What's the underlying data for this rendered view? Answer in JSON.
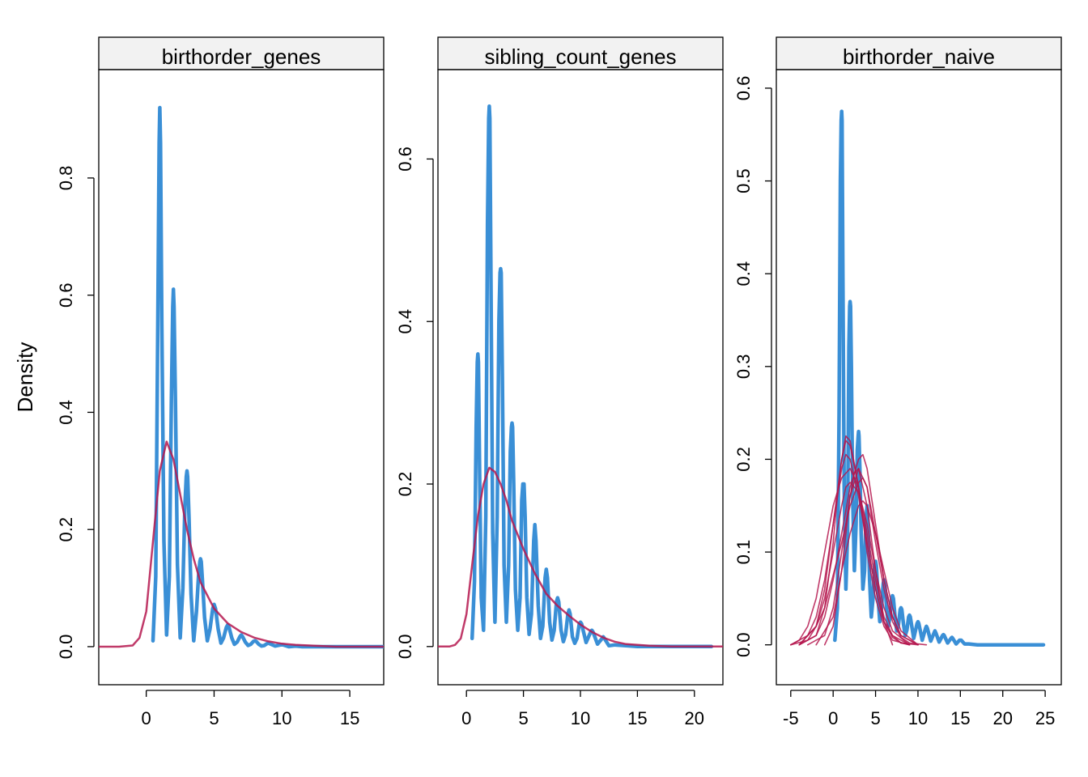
{
  "ylabel": "Density",
  "colors": {
    "observed": "#3a8fd6",
    "simulated": "#b5174f",
    "strip": "#f2f2f2"
  },
  "chart_data": [
    {
      "type": "line",
      "panel": "birthorder_genes",
      "title": "birthorder_genes",
      "ylabel": "Density",
      "xlim": [
        -3.5,
        17.5
      ],
      "ylim": [
        -0.065,
        0.985
      ],
      "xticks": [
        0,
        5,
        10,
        15
      ],
      "xtick_labels": [
        "0",
        "5",
        "10",
        "15"
      ],
      "yticks": [
        0,
        0.2,
        0.4,
        0.6,
        0.8
      ],
      "ytick_labels": [
        "0.0",
        "0.2",
        "0.4",
        "0.6",
        "0.8"
      ],
      "series": [
        {
          "role": "observed",
          "x": [
            0.5,
            0.7,
            0.85,
            0.95,
            1.0,
            1.05,
            1.15,
            1.3,
            1.5,
            1.7,
            1.85,
            1.95,
            2.0,
            2.05,
            2.15,
            2.3,
            2.5,
            2.7,
            2.85,
            2.95,
            3.0,
            3.05,
            3.15,
            3.3,
            3.5,
            3.7,
            3.85,
            3.95,
            4.0,
            4.05,
            4.15,
            4.3,
            4.5,
            4.7,
            4.9,
            5.0,
            5.1,
            5.3,
            5.5,
            5.7,
            5.9,
            6.0,
            6.1,
            6.3,
            6.5,
            6.7,
            6.9,
            7.0,
            7.1,
            7.3,
            7.5,
            7.7,
            7.9,
            8.0,
            8.1,
            8.3,
            8.5,
            8.7,
            8.9,
            9.0,
            9.1,
            9.5,
            9.9,
            10.0,
            10.1,
            10.5,
            11.0,
            11.5,
            12.0,
            13.0,
            14.0,
            15.0,
            16.0,
            17.5
          ],
          "y": [
            0.01,
            0.12,
            0.55,
            0.86,
            0.92,
            0.86,
            0.55,
            0.18,
            0.02,
            0.12,
            0.42,
            0.58,
            0.61,
            0.58,
            0.42,
            0.14,
            0.015,
            0.1,
            0.24,
            0.29,
            0.3,
            0.29,
            0.22,
            0.09,
            0.01,
            0.06,
            0.12,
            0.145,
            0.15,
            0.145,
            0.11,
            0.05,
            0.01,
            0.03,
            0.065,
            0.072,
            0.065,
            0.03,
            0.006,
            0.015,
            0.033,
            0.037,
            0.033,
            0.015,
            0.004,
            0.008,
            0.017,
            0.02,
            0.017,
            0.008,
            0.002,
            0.004,
            0.009,
            0.01,
            0.009,
            0.004,
            0.001,
            0.002,
            0.005,
            0.006,
            0.005,
            0.001,
            0.003,
            0.003,
            0.003,
            0.0,
            0.001,
            0.0,
            0.0,
            0.0,
            0.0,
            0.0,
            0.0,
            0.0
          ]
        },
        {
          "role": "simulated",
          "x": [
            -3.5,
            -2,
            -1,
            -0.5,
            0,
            0.5,
            1,
            1.5,
            2,
            2.5,
            3,
            3.5,
            4,
            5,
            6,
            7,
            8,
            9,
            10,
            11,
            12,
            14,
            17.5
          ],
          "y": [
            0,
            0,
            0.002,
            0.015,
            0.06,
            0.18,
            0.3,
            0.35,
            0.32,
            0.26,
            0.2,
            0.15,
            0.11,
            0.065,
            0.04,
            0.025,
            0.015,
            0.009,
            0.005,
            0.003,
            0.002,
            0,
            0
          ]
        }
      ]
    },
    {
      "type": "line",
      "panel": "sibling_count_genes",
      "title": "sibling_count_genes",
      "ylabel": "",
      "xlim": [
        -2.5,
        22.5
      ],
      "ylim": [
        -0.047,
        0.71
      ],
      "xticks": [
        0,
        5,
        10,
        15,
        20
      ],
      "xtick_labels": [
        "0",
        "5",
        "10",
        "15",
        "20"
      ],
      "yticks": [
        0,
        0.2,
        0.4,
        0.6
      ],
      "ytick_labels": [
        "0.0",
        "0.2",
        "0.4",
        "0.6"
      ],
      "series": [
        {
          "role": "observed",
          "x": [
            0.5,
            0.7,
            0.85,
            0.95,
            1.0,
            1.05,
            1.15,
            1.3,
            1.5,
            1.7,
            1.85,
            1.95,
            2.0,
            2.05,
            2.15,
            2.3,
            2.5,
            2.7,
            2.85,
            2.95,
            3.0,
            3.05,
            3.15,
            3.3,
            3.5,
            3.7,
            3.85,
            3.95,
            4.0,
            4.05,
            4.15,
            4.3,
            4.5,
            4.7,
            4.85,
            4.95,
            5.0,
            5.05,
            5.15,
            5.3,
            5.5,
            5.7,
            5.9,
            6.0,
            6.1,
            6.3,
            6.5,
            6.7,
            6.9,
            7.0,
            7.1,
            7.3,
            7.5,
            7.7,
            7.9,
            8.0,
            8.1,
            8.3,
            8.5,
            8.7,
            8.9,
            9.0,
            9.1,
            9.3,
            9.5,
            9.7,
            9.9,
            10.0,
            10.1,
            10.5,
            10.9,
            11.0,
            11.1,
            11.5,
            11.9,
            12.0,
            12.1,
            12.5,
            13.0,
            14.0,
            15.0,
            16.0,
            17.0,
            18.0,
            20.0,
            21.5
          ],
          "y": [
            0.01,
            0.08,
            0.27,
            0.35,
            0.36,
            0.35,
            0.22,
            0.06,
            0.02,
            0.16,
            0.52,
            0.65,
            0.665,
            0.65,
            0.45,
            0.14,
            0.03,
            0.16,
            0.4,
            0.46,
            0.465,
            0.46,
            0.33,
            0.1,
            0.03,
            0.1,
            0.24,
            0.27,
            0.275,
            0.27,
            0.2,
            0.07,
            0.02,
            0.06,
            0.18,
            0.2,
            0.2,
            0.2,
            0.16,
            0.06,
            0.015,
            0.04,
            0.13,
            0.15,
            0.13,
            0.05,
            0.01,
            0.025,
            0.085,
            0.095,
            0.085,
            0.03,
            0.008,
            0.02,
            0.055,
            0.06,
            0.055,
            0.02,
            0.006,
            0.015,
            0.04,
            0.045,
            0.04,
            0.012,
            0.004,
            0.01,
            0.028,
            0.03,
            0.028,
            0.005,
            0.018,
            0.02,
            0.018,
            0.003,
            0.01,
            0.012,
            0.01,
            0.001,
            0.002,
            0.001,
            0.0,
            0.0,
            0.0,
            0.0,
            0.0,
            0.0
          ]
        },
        {
          "role": "simulated",
          "x": [
            -2.5,
            -1.5,
            -1,
            -0.5,
            0,
            0.5,
            1,
            1.5,
            2,
            2.5,
            3,
            3.5,
            4,
            5,
            6,
            7,
            8,
            9,
            10,
            11,
            12,
            13,
            14,
            16,
            18,
            22.5
          ],
          "y": [
            0,
            0,
            0.002,
            0.01,
            0.04,
            0.1,
            0.16,
            0.2,
            0.22,
            0.215,
            0.2,
            0.18,
            0.155,
            0.12,
            0.09,
            0.065,
            0.05,
            0.038,
            0.027,
            0.018,
            0.011,
            0.006,
            0.003,
            0.001,
            0,
            0
          ]
        }
      ]
    },
    {
      "type": "line",
      "panel": "birthorder_naive",
      "title": "birthorder_naive",
      "ylabel": "",
      "xlim": [
        -6.7,
        26.9
      ],
      "ylim": [
        -0.043,
        0.62
      ],
      "xticks": [
        -5,
        0,
        5,
        10,
        15,
        20,
        25
      ],
      "xtick_labels": [
        "-5",
        "0",
        "5",
        "10",
        "15",
        "20",
        "25"
      ],
      "yticks": [
        0,
        0.1,
        0.2,
        0.3,
        0.4,
        0.5,
        0.6
      ],
      "ytick_labels": [
        "0.0",
        "0.1",
        "0.2",
        "0.3",
        "0.4",
        "0.5",
        "0.6"
      ],
      "series": [
        {
          "role": "observed",
          "x": [
            0.2,
            0.5,
            0.7,
            0.85,
            0.95,
            1.0,
            1.05,
            1.15,
            1.3,
            1.5,
            1.7,
            1.85,
            1.95,
            2.0,
            2.05,
            2.15,
            2.3,
            2.5,
            2.7,
            2.85,
            2.95,
            3.0,
            3.05,
            3.15,
            3.3,
            3.5,
            3.7,
            3.85,
            3.95,
            4.0,
            4.05,
            4.15,
            4.3,
            4.5,
            4.7,
            4.9,
            5.0,
            5.1,
            5.3,
            5.5,
            5.7,
            5.9,
            6.0,
            6.1,
            6.3,
            6.5,
            6.7,
            6.9,
            7.0,
            7.1,
            7.3,
            7.5,
            7.7,
            7.9,
            8.0,
            8.1,
            8.3,
            8.5,
            8.7,
            8.9,
            9.0,
            9.1,
            9.5,
            9.9,
            10.0,
            10.1,
            10.5,
            10.9,
            11.0,
            11.1,
            11.5,
            11.9,
            12.0,
            12.1,
            12.5,
            12.9,
            13.0,
            13.1,
            13.5,
            13.9,
            14.0,
            14.1,
            14.5,
            14.9,
            15.0,
            15.1,
            15.5,
            16.0,
            17.0,
            18.0,
            20.0,
            22.0,
            24.8
          ],
          "y": [
            0.005,
            0.04,
            0.25,
            0.5,
            0.565,
            0.575,
            0.565,
            0.4,
            0.17,
            0.06,
            0.12,
            0.32,
            0.365,
            0.37,
            0.365,
            0.3,
            0.16,
            0.08,
            0.13,
            0.21,
            0.225,
            0.23,
            0.225,
            0.19,
            0.12,
            0.06,
            0.08,
            0.13,
            0.145,
            0.15,
            0.145,
            0.12,
            0.07,
            0.03,
            0.05,
            0.085,
            0.09,
            0.085,
            0.05,
            0.025,
            0.04,
            0.066,
            0.07,
            0.066,
            0.04,
            0.02,
            0.03,
            0.05,
            0.053,
            0.05,
            0.03,
            0.015,
            0.022,
            0.038,
            0.04,
            0.038,
            0.022,
            0.01,
            0.016,
            0.03,
            0.032,
            0.03,
            0.007,
            0.023,
            0.025,
            0.023,
            0.005,
            0.018,
            0.02,
            0.018,
            0.004,
            0.013,
            0.015,
            0.013,
            0.003,
            0.01,
            0.011,
            0.01,
            0.002,
            0.007,
            0.008,
            0.007,
            0.001,
            0.005,
            0.005,
            0.005,
            0.001,
            0.001,
            0.0,
            0.0,
            0.0,
            0.0,
            0.0
          ]
        },
        {
          "role": "simulated",
          "x": [
            -5,
            -3,
            -2,
            -1,
            0,
            1,
            1.5,
            2,
            3,
            4,
            5,
            6,
            7,
            8,
            10
          ],
          "y": [
            0,
            0.01,
            0.03,
            0.07,
            0.13,
            0.19,
            0.205,
            0.2,
            0.16,
            0.11,
            0.06,
            0.025,
            0.008,
            0.002,
            0
          ]
        },
        {
          "role": "simulated",
          "x": [
            -4,
            -2,
            -1,
            0,
            1,
            1.5,
            2,
            3,
            4,
            5,
            6,
            7,
            8,
            9
          ],
          "y": [
            0,
            0.02,
            0.06,
            0.13,
            0.2,
            0.22,
            0.215,
            0.17,
            0.11,
            0.06,
            0.025,
            0.01,
            0.002,
            0
          ]
        },
        {
          "role": "simulated",
          "x": [
            -5,
            -4,
            -3,
            -2,
            -1,
            0,
            1,
            2,
            3,
            4,
            5,
            6,
            7,
            9
          ],
          "y": [
            0,
            0.005,
            0.02,
            0.05,
            0.1,
            0.15,
            0.18,
            0.19,
            0.17,
            0.12,
            0.07,
            0.03,
            0.01,
            0
          ]
        },
        {
          "role": "simulated",
          "x": [
            -4,
            -2,
            -1,
            0,
            0.5,
            1,
            1.5,
            2,
            3,
            4,
            5,
            6,
            7,
            9
          ],
          "y": [
            0,
            0.01,
            0.04,
            0.11,
            0.16,
            0.2,
            0.225,
            0.22,
            0.17,
            0.1,
            0.05,
            0.02,
            0.005,
            0
          ]
        },
        {
          "role": "simulated",
          "x": [
            -5,
            -3,
            -2,
            -1,
            0,
            1,
            2,
            3,
            3.5,
            4,
            5,
            6,
            7,
            8,
            10
          ],
          "y": [
            0,
            0.005,
            0.02,
            0.04,
            0.075,
            0.11,
            0.15,
            0.175,
            0.18,
            0.17,
            0.12,
            0.07,
            0.03,
            0.01,
            0
          ]
        },
        {
          "role": "simulated",
          "x": [
            -3,
            -1,
            0,
            1,
            2,
            2.5,
            3,
            4,
            5,
            6,
            7,
            8,
            9,
            11
          ],
          "y": [
            0,
            0.01,
            0.04,
            0.1,
            0.16,
            0.185,
            0.19,
            0.17,
            0.11,
            0.06,
            0.025,
            0.008,
            0.002,
            0
          ]
        },
        {
          "role": "simulated",
          "x": [
            -4,
            -2,
            -1,
            0,
            1,
            2,
            3,
            3.5,
            4,
            5,
            6,
            7,
            8,
            10
          ],
          "y": [
            0,
            0.01,
            0.03,
            0.07,
            0.12,
            0.17,
            0.2,
            0.205,
            0.19,
            0.13,
            0.07,
            0.03,
            0.01,
            0
          ]
        },
        {
          "role": "simulated",
          "x": [
            -2,
            0,
            1,
            2,
            3,
            3.5,
            4,
            5,
            6,
            7,
            8,
            10
          ],
          "y": [
            0,
            0.03,
            0.08,
            0.12,
            0.15,
            0.155,
            0.15,
            0.12,
            0.08,
            0.04,
            0.015,
            0
          ]
        },
        {
          "role": "simulated",
          "x": [
            -4,
            -2,
            -1,
            0,
            1,
            1.5,
            2,
            3,
            4,
            5,
            6,
            7,
            9
          ],
          "y": [
            0,
            0.02,
            0.05,
            0.1,
            0.15,
            0.17,
            0.175,
            0.165,
            0.13,
            0.08,
            0.04,
            0.015,
            0
          ]
        },
        {
          "role": "simulated",
          "x": [
            -1,
            0,
            1,
            2,
            3,
            4,
            5,
            6,
            7
          ],
          "y": [
            0,
            0.02,
            0.08,
            0.16,
            0.19,
            0.15,
            0.08,
            0.025,
            0
          ]
        }
      ]
    }
  ]
}
